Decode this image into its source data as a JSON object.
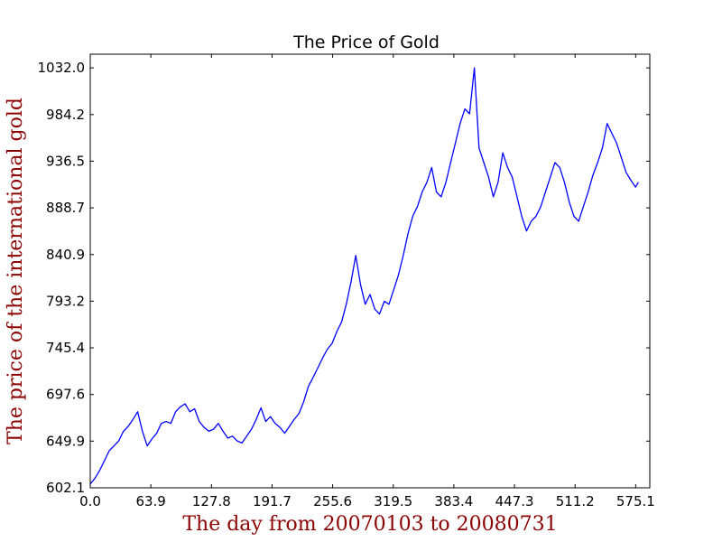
{
  "chart_data": {
    "type": "line",
    "title": "The Price of Gold",
    "xlabel": "The day from 20070103 to 20080731",
    "ylabel": "The price of the international gold",
    "xlim": [
      0,
      590
    ],
    "ylim": [
      602.1,
      1046
    ],
    "xticks": [
      "0.0",
      "63.9",
      "127.8",
      "191.7",
      "255.6",
      "319.5",
      "383.4",
      "447.3",
      "511.2",
      "575.1"
    ],
    "yticks": [
      "602.1",
      "649.9",
      "697.6",
      "745.4",
      "793.2",
      "840.9",
      "888.7",
      "936.5",
      "984.2",
      "1032.0"
    ],
    "grid": false,
    "legend": "none",
    "line_color": "#0000ff",
    "label_color": "#8b0000",
    "series": [
      {
        "x": [
          0,
          5,
          10,
          15,
          20,
          25,
          30,
          35,
          40,
          45,
          50,
          55,
          60,
          65,
          70,
          75,
          80,
          85,
          90,
          95,
          100,
          105,
          110,
          115,
          120,
          125,
          130,
          135,
          140,
          145,
          150,
          155,
          160,
          165,
          170,
          175,
          180,
          185,
          190,
          195,
          200,
          205,
          210,
          215,
          220,
          225,
          230,
          235,
          240,
          245,
          250,
          255,
          260,
          265,
          270,
          275,
          280,
          285,
          290,
          295,
          300,
          305,
          310,
          315,
          320,
          325,
          330,
          335,
          340,
          345,
          350,
          355,
          360,
          365,
          370,
          375,
          380,
          385,
          390,
          395,
          400,
          405,
          410,
          415,
          420,
          425,
          430,
          435,
          440,
          445,
          450,
          455,
          460,
          465,
          470,
          475,
          480,
          485,
          490,
          495,
          500,
          505,
          510,
          515,
          520,
          525,
          530,
          535,
          540,
          545,
          550,
          555,
          560,
          565,
          570,
          575,
          578
        ],
        "values": [
          606,
          612,
          620,
          630,
          640,
          645,
          650,
          660,
          665,
          672,
          680,
          660,
          645,
          652,
          658,
          668,
          670,
          668,
          680,
          685,
          688,
          680,
          683,
          670,
          664,
          660,
          662,
          668,
          660,
          653,
          655,
          650,
          648,
          655,
          662,
          672,
          684,
          670,
          675,
          668,
          664,
          658,
          665,
          672,
          678,
          690,
          706,
          715,
          725,
          735,
          744,
          750,
          762,
          772,
          790,
          813,
          840,
          810,
          790,
          800,
          785,
          780,
          793,
          790,
          805,
          820,
          840,
          862,
          880,
          890,
          905,
          915,
          930,
          905,
          900,
          915,
          935,
          955,
          975,
          990,
          985,
          1032,
          950,
          935,
          920,
          900,
          915,
          945,
          930,
          920,
          900,
          880,
          865,
          875,
          880,
          890,
          905,
          920,
          935,
          930,
          915,
          895,
          880,
          875,
          890,
          905,
          922,
          935,
          950,
          975,
          965,
          955,
          940,
          925,
          917,
          910,
          915
        ]
      }
    ]
  }
}
